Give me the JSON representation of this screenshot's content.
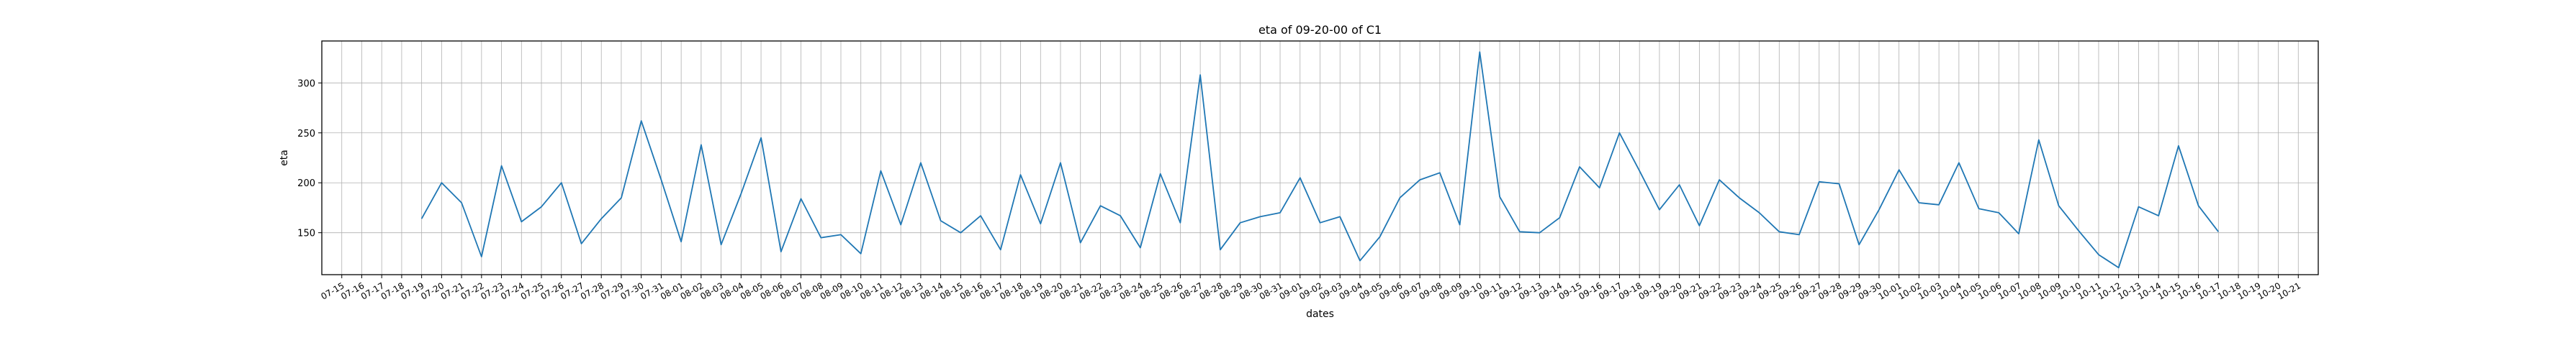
{
  "chart_data": {
    "type": "line",
    "title": "eta of 09-20-00 of C1",
    "xlabel": "dates",
    "ylabel": "eta",
    "grid": true,
    "x_tick_labels": [
      "07-15",
      "07-16",
      "07-17",
      "07-18",
      "07-19",
      "07-20",
      "07-21",
      "07-22",
      "07-23",
      "07-24",
      "07-25",
      "07-26",
      "07-27",
      "07-28",
      "07-29",
      "07-30",
      "07-31",
      "08-01",
      "08-02",
      "08-03",
      "08-04",
      "08-05",
      "08-06",
      "08-07",
      "08-08",
      "08-09",
      "08-10",
      "08-11",
      "08-12",
      "08-13",
      "08-14",
      "08-15",
      "08-16",
      "08-17",
      "08-18",
      "08-19",
      "08-20",
      "08-21",
      "08-22",
      "08-23",
      "08-24",
      "08-25",
      "08-26",
      "08-27",
      "08-28",
      "08-29",
      "08-30",
      "08-31",
      "09-01",
      "09-02",
      "09-03",
      "09-04",
      "09-05",
      "09-06",
      "09-07",
      "09-08",
      "09-09",
      "09-10",
      "09-11",
      "09-12",
      "09-13",
      "09-14",
      "09-15",
      "09-16",
      "09-17",
      "09-18",
      "09-19",
      "09-20",
      "09-21",
      "09-22",
      "09-23",
      "09-24",
      "09-25",
      "09-26",
      "09-27",
      "09-28",
      "09-29",
      "09-30",
      "10-01",
      "10-02",
      "10-03",
      "10-04",
      "10-05",
      "10-06",
      "10-07",
      "10-08",
      "10-09",
      "10-10",
      "10-11",
      "10-12",
      "10-13",
      "10-14",
      "10-15",
      "10-16",
      "10-17",
      "10-18",
      "10-19",
      "10-20",
      "10-21"
    ],
    "y_ticks": [
      150,
      200,
      250,
      300
    ],
    "xlim": [
      "07-14",
      "10-22"
    ],
    "ylim": [
      108,
      342
    ],
    "series": [
      {
        "color": "#1f77b4",
        "x": [
          "07-19",
          "07-20",
          "07-21",
          "07-22",
          "07-23",
          "07-24",
          "07-25",
          "07-26",
          "07-27",
          "07-28",
          "07-29",
          "07-30",
          "07-31",
          "08-01",
          "08-02",
          "08-03",
          "08-04",
          "08-05",
          "08-06",
          "08-07",
          "08-08",
          "08-09",
          "08-10",
          "08-11",
          "08-12",
          "08-13",
          "08-14",
          "08-15",
          "08-16",
          "08-17",
          "08-18",
          "08-19",
          "08-20",
          "08-21",
          "08-22",
          "08-23",
          "08-24",
          "08-25",
          "08-26",
          "08-27",
          "08-28",
          "08-29",
          "08-30",
          "08-31",
          "09-01",
          "09-02",
          "09-03",
          "09-04",
          "09-05",
          "09-06",
          "09-07",
          "09-08",
          "09-09",
          "09-10",
          "09-11",
          "09-12",
          "09-13",
          "09-14",
          "09-15",
          "09-16",
          "09-17",
          "09-18",
          "09-19",
          "09-20",
          "09-21",
          "09-22",
          "09-23",
          "09-24",
          "09-25",
          "09-26",
          "09-27",
          "09-28",
          "09-29",
          "09-30",
          "10-01",
          "10-02",
          "10-03",
          "10-04",
          "10-05",
          "10-06",
          "10-07",
          "10-08",
          "10-09",
          "10-10",
          "10-11",
          "10-12",
          "10-13",
          "10-14",
          "10-15",
          "10-16",
          "10-17"
        ],
        "y": [
          164,
          200,
          180,
          126,
          217,
          161,
          176,
          200,
          139,
          164,
          185,
          262,
          203,
          141,
          238,
          138,
          189,
          245,
          131,
          184,
          145,
          148,
          129,
          212,
          158,
          220,
          162,
          150,
          167,
          133,
          208,
          159,
          220,
          140,
          177,
          167,
          135,
          209,
          160,
          308,
          133,
          160,
          166,
          170,
          205,
          160,
          166,
          122,
          146,
          185,
          203,
          210,
          158,
          331,
          186,
          151,
          150,
          165,
          216,
          195,
          250,
          212,
          173,
          198,
          157,
          203,
          185,
          170,
          151,
          148,
          201,
          199,
          138,
          173,
          213,
          180,
          178,
          220,
          174,
          170,
          149,
          243,
          177,
          152,
          128,
          115,
          176,
          167,
          237,
          177,
          151
        ]
      }
    ]
  }
}
